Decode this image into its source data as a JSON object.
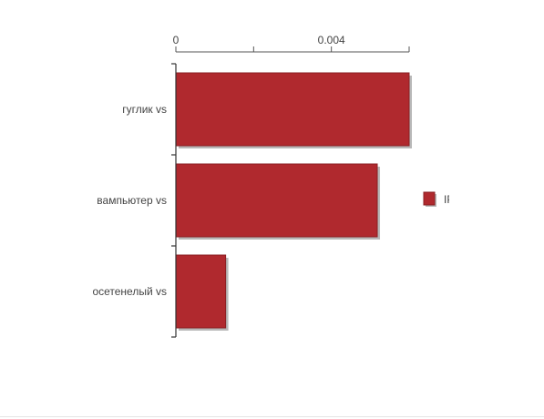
{
  "chart_data": {
    "type": "bar",
    "orientation": "horizontal",
    "categories": [
      "гуглик vs",
      "вампьютер vs",
      "осетенелый vs"
    ],
    "series": [
      {
        "name": "IP",
        "values": [
          0.006,
          0.00518,
          0.00128
        ]
      }
    ],
    "xaxis_position": "top",
    "xticks": [
      0,
      0.002,
      0.004,
      0.006
    ],
    "xtick_labels": [
      "0",
      "",
      "0.004",
      ""
    ],
    "xlim": [
      0,
      0.006
    ],
    "grid": false,
    "legend_position": "right",
    "colors": {
      "bar": "#b0292e",
      "bar_stroke": "#8a1f23",
      "shadow": "#7d7d7d",
      "axis": "#333333"
    }
  }
}
